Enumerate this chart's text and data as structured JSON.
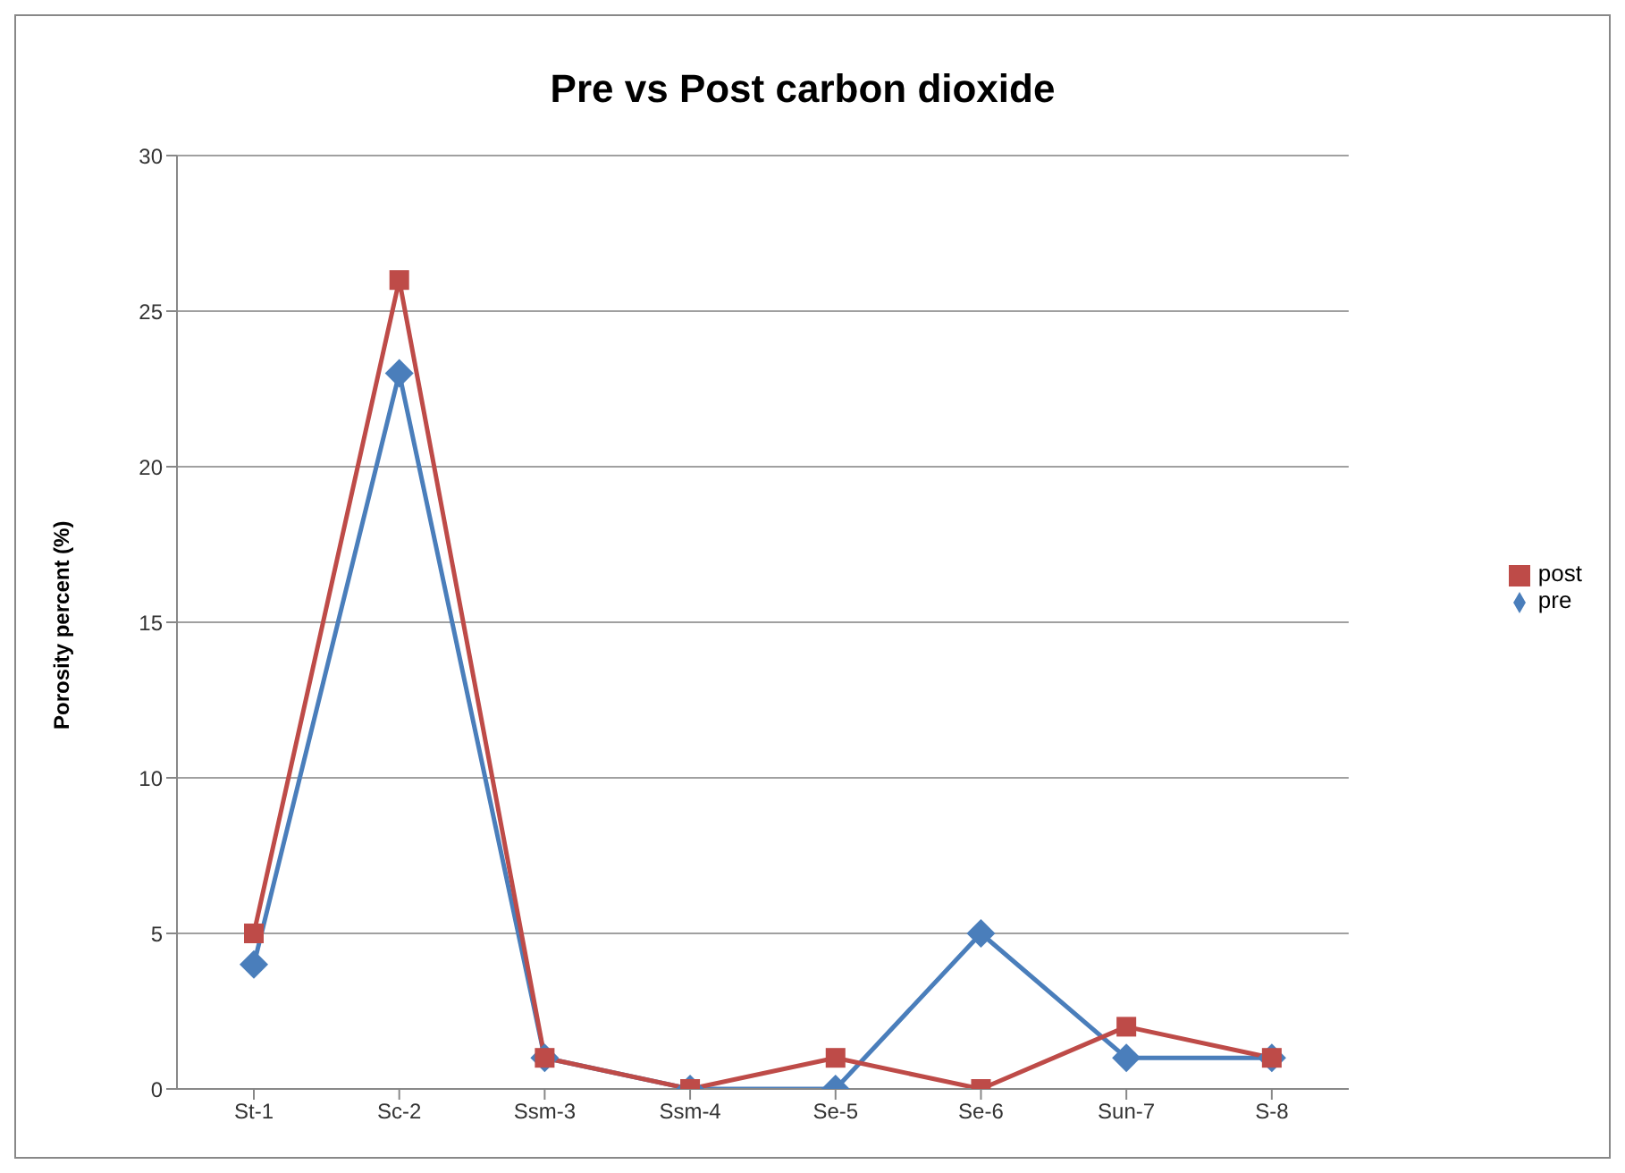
{
  "chart_data": {
    "type": "line",
    "title": "Pre vs Post carbon dioxide",
    "ylabel": "Porosity percent (%)",
    "categories": [
      "St-1",
      "Sc-2",
      "Ssm-3",
      "Ssm-4",
      "Se-5",
      "Se-6",
      "Sun-7",
      "S-8"
    ],
    "series": [
      {
        "name": "pre",
        "color": "#4a7ebb",
        "marker": "diamond",
        "values": [
          4,
          23,
          1,
          0,
          0,
          5,
          1,
          1
        ]
      },
      {
        "name": "post",
        "color": "#be4b48",
        "marker": "square",
        "values": [
          5,
          26,
          1,
          0,
          1,
          0,
          2,
          1
        ]
      }
    ],
    "ylim": [
      0,
      30
    ],
    "yticks": [
      0,
      5,
      10,
      15,
      20,
      25,
      30
    ],
    "grid": "y",
    "legend": "right",
    "line_style": "solid"
  }
}
